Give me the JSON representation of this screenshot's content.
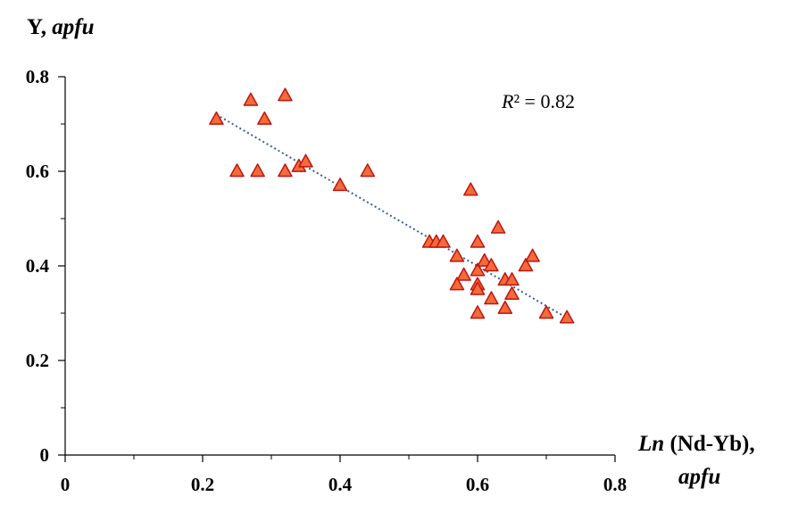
{
  "chart_data": {
    "type": "scatter",
    "title": "",
    "ylabel_plain": "Y, ",
    "ylabel_italic": "apfu",
    "xlabel_italic": "Ln",
    "xlabel_plain": " (Nd-Yb),",
    "xlabel_line2": "apfu",
    "annotation_var": "R",
    "annotation_rest": "² = 0.82",
    "xlim": [
      0,
      0.8
    ],
    "ylim": [
      0,
      0.8
    ],
    "xticks": [
      0,
      0.2,
      0.4,
      0.6,
      0.8
    ],
    "yticks": [
      0,
      0.2,
      0.4,
      0.6,
      0.8
    ],
    "xtick_labels": [
      "0",
      "0.2",
      "0.4",
      "0.6",
      "0.8"
    ],
    "ytick_labels": [
      "0",
      "0.2",
      "0.4",
      "0.6",
      "0.8"
    ],
    "grid": false,
    "marker": "triangle",
    "marker_fill": "#f26b3a",
    "marker_stroke": "#c0150f",
    "trendline_color": "#3a5f94",
    "trendline": {
      "x": [
        0.22,
        0.73
      ],
      "y": [
        0.72,
        0.29
      ]
    },
    "series": [
      {
        "points": [
          [
            0.22,
            0.71
          ],
          [
            0.27,
            0.75
          ],
          [
            0.29,
            0.71
          ],
          [
            0.32,
            0.76
          ],
          [
            0.25,
            0.6
          ],
          [
            0.28,
            0.6
          ],
          [
            0.32,
            0.6
          ],
          [
            0.34,
            0.61
          ],
          [
            0.35,
            0.62
          ],
          [
            0.4,
            0.57
          ],
          [
            0.44,
            0.6
          ],
          [
            0.53,
            0.45
          ],
          [
            0.54,
            0.45
          ],
          [
            0.55,
            0.45
          ],
          [
            0.59,
            0.56
          ],
          [
            0.57,
            0.42
          ],
          [
            0.58,
            0.38
          ],
          [
            0.57,
            0.36
          ],
          [
            0.6,
            0.45
          ],
          [
            0.6,
            0.39
          ],
          [
            0.6,
            0.36
          ],
          [
            0.6,
            0.35
          ],
          [
            0.6,
            0.3
          ],
          [
            0.61,
            0.41
          ],
          [
            0.62,
            0.4
          ],
          [
            0.62,
            0.33
          ],
          [
            0.63,
            0.48
          ],
          [
            0.64,
            0.37
          ],
          [
            0.64,
            0.31
          ],
          [
            0.65,
            0.37
          ],
          [
            0.65,
            0.34
          ],
          [
            0.67,
            0.4
          ],
          [
            0.68,
            0.42
          ],
          [
            0.7,
            0.3
          ],
          [
            0.73,
            0.29
          ]
        ]
      }
    ]
  }
}
